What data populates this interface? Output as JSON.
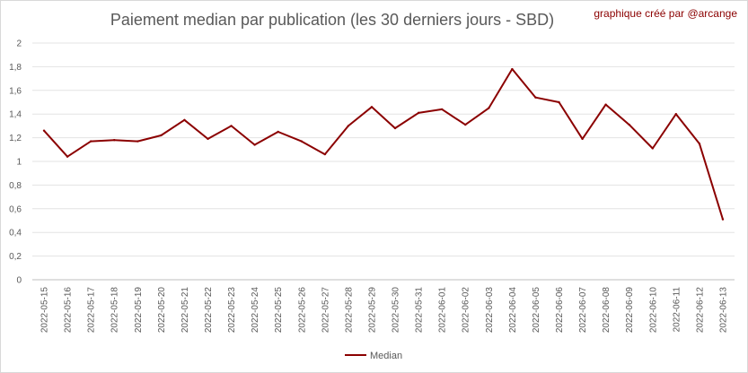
{
  "chart_data": {
    "type": "line",
    "title": "Paiement median par publication (les 30 derniers jours - SBD)",
    "credit": "graphique créé par @arcange",
    "ylim": [
      0,
      2
    ],
    "yticks": [
      "0",
      "0,2",
      "0,4",
      "0,6",
      "0,8",
      "1",
      "1,2",
      "1,4",
      "1,6",
      "1,8",
      "2"
    ],
    "grid": true,
    "legend": "bottom",
    "categories": [
      "2022-05-15",
      "2022-05-16",
      "2022-05-17",
      "2022-05-18",
      "2022-05-19",
      "2022-05-20",
      "2022-05-21",
      "2022-05-22",
      "2022-05-23",
      "2022-05-24",
      "2022-05-25",
      "2022-05-26",
      "2022-05-27",
      "2022-05-28",
      "2022-05-29",
      "2022-05-30",
      "2022-05-31",
      "2022-06-01",
      "2022-06-02",
      "2022-06-03",
      "2022-06-04",
      "2022-06-05",
      "2022-06-06",
      "2022-06-07",
      "2022-06-08",
      "2022-06-09",
      "2022-06-10",
      "2022-06-11",
      "2022-06-12",
      "2022-06-13"
    ],
    "series": [
      {
        "name": "Median",
        "color": "#8b0000",
        "values": [
          1.26,
          1.04,
          1.17,
          1.18,
          1.17,
          1.22,
          1.35,
          1.19,
          1.3,
          1.14,
          1.25,
          1.17,
          1.06,
          1.3,
          1.46,
          1.28,
          1.41,
          1.44,
          1.31,
          1.45,
          1.78,
          1.54,
          1.5,
          1.19,
          1.48,
          1.31,
          1.11,
          1.4,
          1.15,
          0.51
        ]
      }
    ]
  }
}
